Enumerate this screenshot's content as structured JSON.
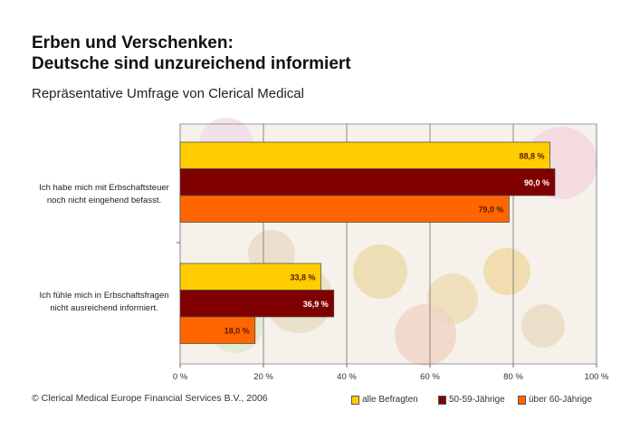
{
  "title_line1": "Erben und Verschenken:",
  "title_line2": "Deutsche sind unzureichend informiert",
  "subtitle": "Repräsentative Umfrage von Clerical Medical",
  "footer": "© Clerical Medical Europe Financial Services B.V., 2006",
  "chart_data": {
    "type": "bar",
    "orientation": "horizontal",
    "categories": [
      "Ich habe mich mit Erbschaftsteuer noch nicht eingehend befasst.",
      "Ich fühle mich in Erbschaftsfragen nicht ausreichend informiert."
    ],
    "category_lines": [
      [
        "Ich habe mich mit Erbschaftsteuer",
        "noch nicht eingehend befasst."
      ],
      [
        "Ich fühle mich in Erbschaftsfragen",
        "nicht ausreichend informiert."
      ]
    ],
    "series": [
      {
        "name": "alle Befragten",
        "color": "#ffcc00",
        "values": [
          88.8,
          33.8
        ],
        "labels": [
          "88,8 %",
          "33,8 %"
        ],
        "label_color": "#5a1a00"
      },
      {
        "name": "50-59-Jährige",
        "color": "#800000",
        "values": [
          90.0,
          36.9
        ],
        "labels": [
          "90,0 %",
          "36,9 %"
        ],
        "label_color": "#ffffff"
      },
      {
        "name": "über 60-Jährige",
        "color": "#ff6600",
        "values": [
          79.0,
          18.0
        ],
        "labels": [
          "79,0 %",
          "18,0 %"
        ],
        "label_color": "#5a1a00"
      }
    ],
    "xlim": [
      0,
      100
    ],
    "xticks": [
      0,
      20,
      40,
      60,
      80,
      100
    ],
    "xtick_labels": [
      "0 %",
      "20 %",
      "40 %",
      "60 %",
      "80 %",
      "100 %"
    ],
    "grid": true,
    "legend": "bottom-right"
  }
}
